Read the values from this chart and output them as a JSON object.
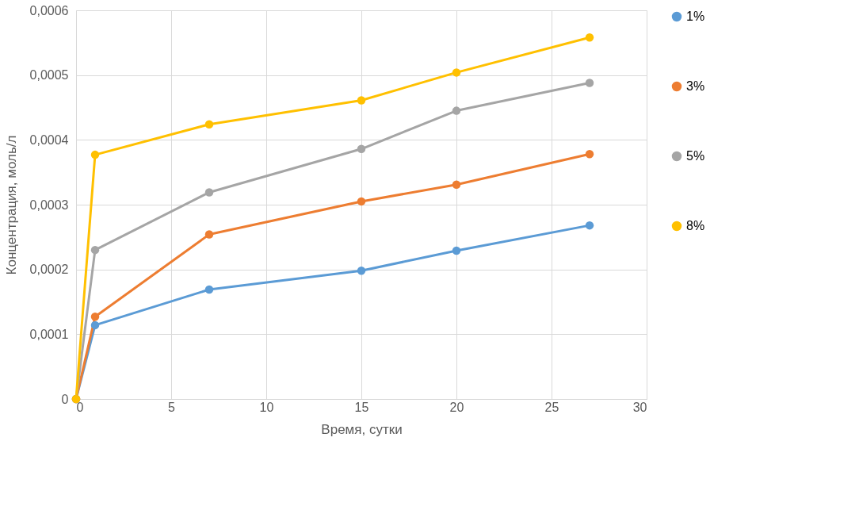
{
  "chart_data": {
    "type": "line",
    "xlabel": "Время, сутки",
    "ylabel": "Концентрация, моль/л",
    "x": [
      0,
      1,
      7,
      15,
      20,
      27
    ],
    "series": [
      {
        "name": "1%",
        "color": "#5b9bd5",
        "values": [
          0,
          0.000114,
          0.000169,
          0.000198,
          0.000229,
          0.000268
        ]
      },
      {
        "name": "3%",
        "color": "#ed7d31",
        "values": [
          0,
          0.000127,
          0.000254,
          0.000305,
          0.000331,
          0.000378
        ]
      },
      {
        "name": "5%",
        "color": "#a5a5a5",
        "values": [
          0,
          0.00023,
          0.000319,
          0.000386,
          0.000445,
          0.000488
        ]
      },
      {
        "name": "8%",
        "color": "#ffc000",
        "values": [
          0,
          0.000377,
          0.000424,
          0.000461,
          0.000504,
          0.000558
        ]
      }
    ],
    "xlim": [
      0,
      30
    ],
    "xticks": [
      0,
      5,
      10,
      15,
      20,
      25,
      30
    ],
    "ylim": [
      0,
      0.0006
    ],
    "yticks": [
      0,
      {
        "value": 0.0001,
        "label": "0,0001"
      },
      {
        "value": 0.0002,
        "label": "0,0002"
      },
      {
        "value": 0.0003,
        "label": "0,0003"
      },
      {
        "value": 0.0004,
        "label": "0,0004"
      },
      {
        "value": 0.0005,
        "label": "0,0005"
      },
      {
        "value": 0.0006,
        "label": "0,0006"
      }
    ],
    "grid": true,
    "legend": "right",
    "marker": "circle",
    "line_style": "solid"
  }
}
